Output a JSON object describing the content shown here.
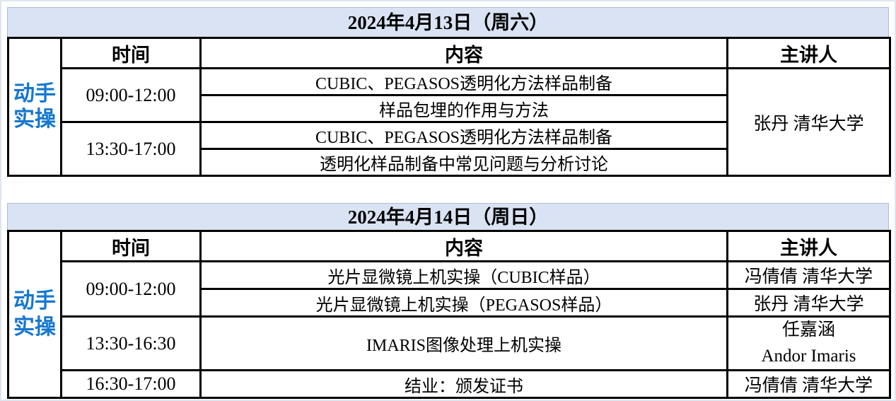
{
  "colors": {
    "accent_blue": "#1577d0",
    "band_bg": "#dae3f3",
    "border": "#000000"
  },
  "day1": {
    "title": "2024年4月13日（周六）",
    "side_label": [
      "动手",
      "实操"
    ],
    "col_time": "时间",
    "col_content": "内容",
    "col_speaker": "主讲人",
    "block1_time": "09:00-12:00",
    "block1_item1": "CUBIC、PEGASOS透明化方法样品制备",
    "block1_item2": "样品包埋的作用与方法",
    "block2_time": "13:30-17:00",
    "block2_item1": "CUBIC、PEGASOS透明化方法样品制备",
    "block2_item2": "透明化样品制备中常见问题与分析讨论",
    "speaker": "张丹 清华大学"
  },
  "day2": {
    "title": "2024年4月14日（周日）",
    "side_label": [
      "动手",
      "实操"
    ],
    "col_time": "时间",
    "col_content": "内容",
    "col_speaker": "主讲人",
    "row1_time": "09:00-12:00",
    "row1_content": "光片显微镜上机实操（CUBIC样品）",
    "row1_speaker": "冯倩倩 清华大学",
    "row2_content": "光片显微镜上机实操（PEGASOS样品）",
    "row2_speaker": "张丹 清华大学",
    "row3_time": "13:30-16:30",
    "row3_content": "IMARIS图像处理上机实操",
    "row3_speaker_line1": "任嘉涵",
    "row3_speaker_line2": "Andor Imaris",
    "row4_time": "16:30-17:00",
    "row4_content": "结业：颁发证书",
    "row4_speaker": "冯倩倩 清华大学"
  }
}
